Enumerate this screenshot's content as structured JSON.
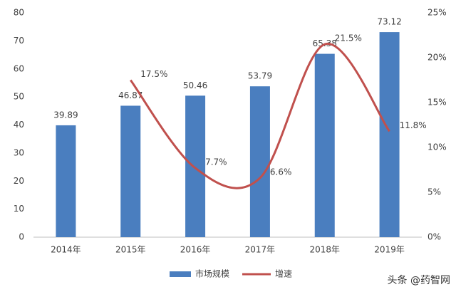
{
  "chart_data": {
    "type": "bar",
    "categories": [
      "2014年",
      "2015年",
      "2016年",
      "2017年",
      "2018年",
      "2019年"
    ],
    "series": [
      {
        "name": "市场规模",
        "color": "#4a7ebf",
        "values": [
          39.89,
          46.87,
          50.46,
          53.79,
          65.38,
          73.12
        ]
      },
      {
        "name": "增速",
        "color": "#c0504d",
        "axis": "y2",
        "values": [
          null,
          17.5,
          7.7,
          6.6,
          21.5,
          11.8
        ],
        "value_labels": [
          null,
          "17.5%",
          "7.7%",
          "6.6%",
          "21.5%",
          "11.8%"
        ]
      }
    ],
    "ylim": [
      0,
      80
    ],
    "yticks": [
      0,
      10,
      20,
      30,
      40,
      50,
      60,
      70,
      80
    ],
    "y2lim": [
      0,
      25
    ],
    "y2ticks": [
      {
        "value": 0,
        "label": "0%"
      },
      {
        "value": 5,
        "label": "5%"
      },
      {
        "value": 10,
        "label": "10%"
      },
      {
        "value": 15,
        "label": "15%"
      },
      {
        "value": 20,
        "label": "20%"
      },
      {
        "value": 25,
        "label": "25%"
      }
    ],
    "grid": false,
    "legend": "bottom",
    "watermark": "头条 @药智网"
  }
}
